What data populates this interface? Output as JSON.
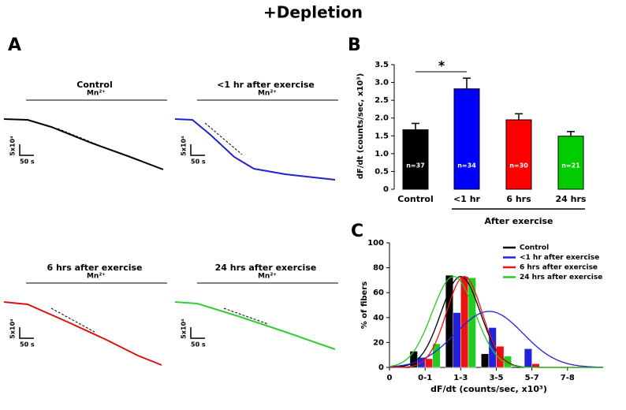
{
  "title": "+Depletion",
  "panel_a": {
    "label": "A",
    "traces": [
      {
        "title": "Control",
        "stimulus": "Mn²⁺",
        "scale_y": "5x10⁴",
        "scale_x": "50 s",
        "color": "#000000"
      },
      {
        "title": "<1 hr after exercise",
        "stimulus": "Mn²⁺",
        "scale_y": "5x10⁴",
        "scale_x": "50 s",
        "color": "#2222cc"
      },
      {
        "title": "6 hrs after exercise",
        "stimulus": "Mn²⁺",
        "scale_y": "5x10⁴",
        "scale_x": "50 s",
        "color": "#dd1111"
      },
      {
        "title": "24 hrs after exercise",
        "stimulus": "Mn²⁺",
        "scale_y": "5x10⁴",
        "scale_x": "50 s",
        "color": "#33cc33"
      }
    ]
  },
  "chart_data": [
    {
      "type": "bar",
      "panel": "B",
      "ylabel": "dF/dt (counts/sec, x10³)",
      "categories": [
        "Control",
        "<1 hr",
        "6 hrs",
        "24 hrs"
      ],
      "values": [
        1.67,
        2.82,
        1.95,
        1.49
      ],
      "errors": [
        0.18,
        0.3,
        0.17,
        0.13
      ],
      "colors": [
        "#000000",
        "#0000ff",
        "#ff0000",
        "#00cc00"
      ],
      "bar_labels": [
        "n=37",
        "n=34",
        "n=30",
        "n=21"
      ],
      "group_label": "After exercise",
      "significance": "*",
      "ylim": [
        0,
        3.5
      ],
      "yticks": [
        0,
        0.5,
        {
          "value": 1,
          "label": "1.0"
        },
        1.5,
        {
          "value": 2,
          "label": "2.0"
        },
        2.5,
        {
          "value": 3,
          "label": "3.0"
        },
        3.5
      ]
    },
    {
      "type": "groupedbar",
      "panel": "C",
      "xlabel": "dF/dt (counts/sec, x10³)",
      "ylabel": "% of fibers",
      "x": [
        1,
        2,
        3,
        4
      ],
      "xlim": [
        0,
        6
      ],
      "xticks": [
        {
          "value": 0,
          "label": "0"
        },
        {
          "value": 1,
          "label": "0-1"
        },
        {
          "value": 2,
          "label": "1-3"
        },
        {
          "value": 3,
          "label": "3-5"
        },
        {
          "value": 4,
          "label": "5-7"
        },
        {
          "value": 5,
          "label": "7-8"
        }
      ],
      "ylim": [
        0,
        100
      ],
      "yticks": [
        0,
        20,
        40,
        60,
        80,
        100
      ],
      "legend": "top-right",
      "series": [
        {
          "name": "Control",
          "color": "#000000",
          "values": [
            13,
            74,
            11,
            0
          ],
          "fit": {
            "mean": 2.0,
            "sd": 0.55,
            "peak": 73
          }
        },
        {
          "name": "<1 hr after exercise",
          "color": "#2222dd",
          "values": [
            8,
            44,
            32,
            15
          ],
          "fit": {
            "mean": 2.8,
            "sd": 0.95,
            "peak": 45
          }
        },
        {
          "name": "6 hrs after exercise",
          "color": "#ee1111",
          "values": [
            7,
            73,
            17,
            3
          ],
          "fit": {
            "mean": 2.1,
            "sd": 0.5,
            "peak": 73
          }
        },
        {
          "name": "24 hrs after exercise",
          "color": "#22cc22",
          "values": [
            19,
            72,
            9,
            0
          ],
          "fit": {
            "mean": 1.8,
            "sd": 0.6,
            "peak": 73
          }
        }
      ]
    }
  ]
}
